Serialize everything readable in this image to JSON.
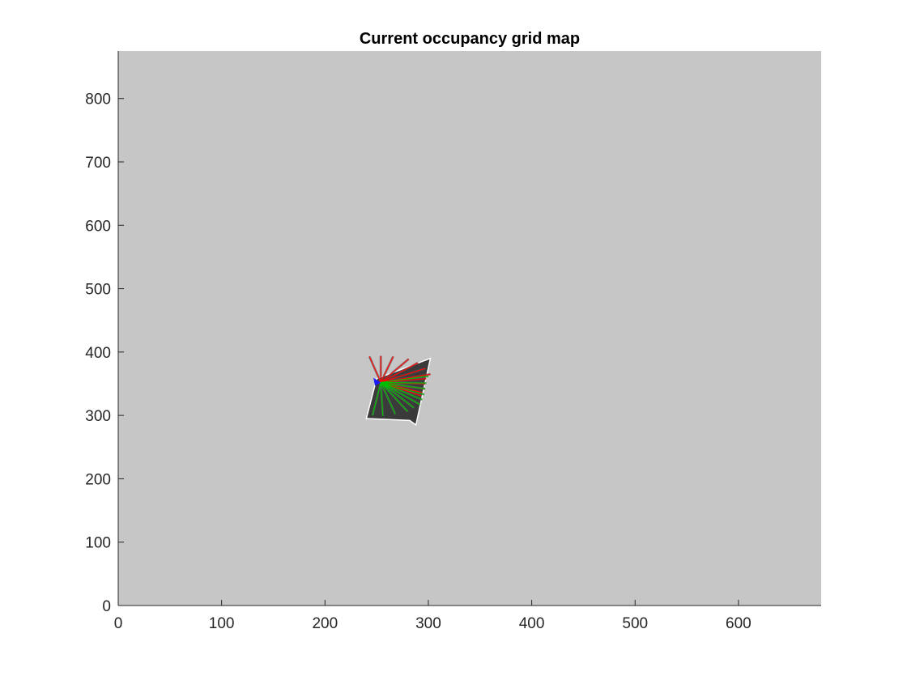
{
  "chart_data": {
    "type": "heatmap",
    "title": "Current occupancy grid map",
    "xlabel": "",
    "ylabel": "",
    "xlim": [
      0,
      680
    ],
    "ylim": [
      0,
      875
    ],
    "x_ticks": [
      0,
      100,
      200,
      300,
      400,
      500,
      600
    ],
    "y_ticks": [
      0,
      100,
      200,
      300,
      400,
      500,
      600,
      700,
      800
    ],
    "grid": false,
    "colors": {
      "unknown": "#c6c6c6",
      "free_dark": "#3a3a3a",
      "free_light": "#5a5a5a",
      "occupied": "#ffffff",
      "robot": "#1a1aff",
      "ray_red": "#ff0000",
      "ray_green": "#00c000"
    },
    "scan_region": {
      "polygon": [
        [
          240,
          295
        ],
        [
          250,
          358
        ],
        [
          302,
          390
        ],
        [
          288,
          285
        ],
        [
          282,
          292
        ]
      ]
    },
    "robot_pose": {
      "x": 250,
      "y": 353
    },
    "ray_origin": {
      "x": 254,
      "y": 352
    },
    "red_rays": [
      [
        243,
        393
      ],
      [
        254,
        394
      ],
      [
        266,
        393
      ],
      [
        281,
        389
      ],
      [
        290,
        383
      ],
      [
        297,
        374
      ],
      [
        302,
        365
      ],
      [
        298,
        358
      ],
      [
        297,
        350
      ],
      [
        296,
        342
      ],
      [
        294,
        336
      ],
      [
        293,
        331
      ]
    ],
    "green_rays": [
      [
        300,
        362
      ],
      [
        298,
        351
      ],
      [
        297,
        342
      ],
      [
        296,
        333
      ],
      [
        294,
        325
      ],
      [
        292,
        317
      ],
      [
        286,
        312
      ],
      [
        280,
        306
      ],
      [
        268,
        302
      ],
      [
        256,
        299
      ],
      [
        246,
        300
      ]
    ]
  }
}
